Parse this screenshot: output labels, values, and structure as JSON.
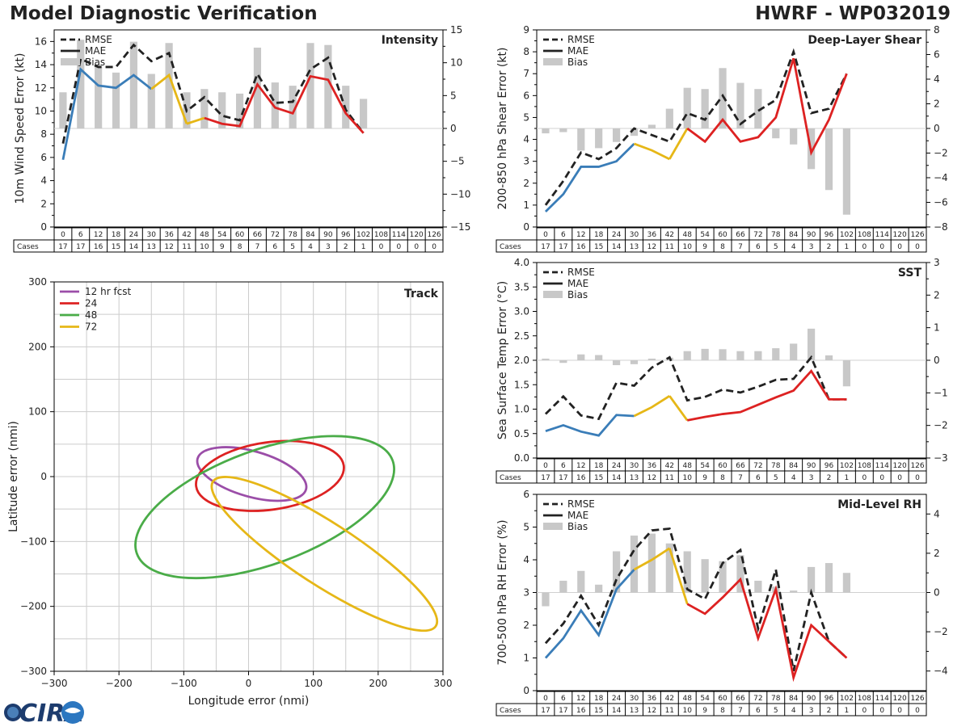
{
  "page": {
    "title_left": "Model Diagnostic Verification",
    "title_right": "HWRF - WP032019",
    "logo_text": "CIRA"
  },
  "legend_labels": {
    "rmse": "RMSE",
    "mae": "MAE",
    "bias": "Bias"
  },
  "cases_label": "Cases",
  "colors": {
    "rmse": "#222222",
    "blue": "#3a7db8",
    "yellow": "#e6b717",
    "red": "#dd2222",
    "bias": "#c8c8c8",
    "purple": "#9b4ea8",
    "green": "#4aac48"
  },
  "chart_data": [
    {
      "id": "intensity",
      "type": "line+bar",
      "title": "Intensity",
      "ylabel": "10m Wind Speed Error (kt)",
      "ylim": [
        0,
        17
      ],
      "yticks": [
        0,
        2,
        4,
        6,
        8,
        10,
        12,
        14,
        16
      ],
      "y2lim": [
        -15,
        15
      ],
      "y2ticks": [
        -15,
        -10,
        -5,
        0,
        5,
        10,
        15
      ],
      "tau": [
        0,
        6,
        12,
        18,
        24,
        30,
        36,
        42,
        48,
        54,
        60,
        66,
        72,
        78,
        84,
        90,
        96,
        102,
        108,
        114,
        120,
        126
      ],
      "cases": [
        17,
        17,
        16,
        15,
        14,
        13,
        12,
        11,
        10,
        9,
        8,
        7,
        6,
        5,
        4,
        3,
        2,
        1,
        0,
        0,
        0,
        0
      ],
      "rmse": [
        7.2,
        14.5,
        13.8,
        13.8,
        15.7,
        14.3,
        15.0,
        10.0,
        11.2,
        9.6,
        9.2,
        13.2,
        10.7,
        10.8,
        13.6,
        14.6,
        10.1,
        8.1
      ],
      "mae": [
        5.8,
        13.6,
        12.2,
        12.0,
        13.1,
        11.9,
        13.1,
        8.9,
        9.4,
        8.9,
        8.7,
        12.3,
        10.3,
        9.8,
        13.0,
        12.7,
        9.8,
        8.1
      ],
      "mae_segments": [
        {
          "from": 0,
          "to": 5,
          "color": "blue"
        },
        {
          "from": 5,
          "to": 7,
          "color": "yellow"
        },
        {
          "from": 7,
          "to": 8,
          "color": "yellow"
        },
        {
          "from": 8,
          "to": 17,
          "color": "red"
        }
      ],
      "bias": [
        5.5,
        13.5,
        9.5,
        8.5,
        13.2,
        8.3,
        13.0,
        5.5,
        6.0,
        5.5,
        5.3,
        12.3,
        7.0,
        6.5,
        13.0,
        12.7,
        6.5,
        4.5
      ]
    },
    {
      "id": "shear",
      "type": "line+bar",
      "title": "Deep-Layer Shear",
      "ylabel": "200-850 hPa Shear Error (kt)",
      "ylim": [
        0,
        9
      ],
      "yticks": [
        0,
        1,
        2,
        3,
        4,
        5,
        6,
        7,
        8,
        9
      ],
      "y2lim": [
        -8,
        8
      ],
      "y2ticks": [
        -8,
        -6,
        -4,
        -2,
        0,
        2,
        4,
        6,
        8
      ],
      "tau": [
        0,
        6,
        12,
        18,
        24,
        30,
        36,
        42,
        48,
        54,
        60,
        66,
        72,
        78,
        84,
        90,
        96,
        102,
        108,
        114,
        120,
        126
      ],
      "cases": [
        17,
        17,
        16,
        15,
        14,
        13,
        12,
        11,
        10,
        9,
        8,
        7,
        6,
        5,
        4,
        3,
        2,
        1,
        0,
        0,
        0,
        0
      ],
      "rmse": [
        1.0,
        2.1,
        3.4,
        3.1,
        3.6,
        4.5,
        4.2,
        3.9,
        5.2,
        4.9,
        6.0,
        4.7,
        5.3,
        5.8,
        8.0,
        5.2,
        5.4,
        7.0
      ],
      "mae": [
        0.7,
        1.5,
        2.75,
        2.75,
        3.0,
        3.8,
        3.5,
        3.1,
        4.5,
        3.9,
        4.9,
        3.9,
        4.1,
        5.0,
        7.7,
        3.4,
        4.9,
        7.0
      ],
      "mae_segments": [
        {
          "from": 0,
          "to": 5,
          "color": "blue"
        },
        {
          "from": 5,
          "to": 7,
          "color": "yellow"
        },
        {
          "from": 7,
          "to": 8,
          "color": "yellow"
        },
        {
          "from": 8,
          "to": 17,
          "color": "red"
        }
      ],
      "bias": [
        -0.4,
        -0.3,
        -1.8,
        -1.6,
        -1.1,
        -0.6,
        0.3,
        1.6,
        3.3,
        3.2,
        4.9,
        3.7,
        3.2,
        -0.8,
        -1.3,
        -3.3,
        -5.0,
        -7.0
      ]
    },
    {
      "id": "sst",
      "type": "line+bar",
      "title": "SST",
      "ylabel": "Sea Surface Temp Error (°C)",
      "ylim": [
        0,
        4
      ],
      "yticks": [
        0.0,
        0.5,
        1.0,
        1.5,
        2.0,
        2.5,
        3.0,
        3.5,
        4.0
      ],
      "y2lim": [
        -3,
        3
      ],
      "y2ticks": [
        -3,
        -2,
        -1,
        0,
        1,
        2,
        3
      ],
      "tau": [
        0,
        6,
        12,
        18,
        24,
        30,
        36,
        42,
        48,
        54,
        60,
        66,
        72,
        78,
        84,
        90,
        96,
        102,
        108,
        114,
        120,
        126
      ],
      "cases": [
        17,
        17,
        16,
        15,
        14,
        13,
        12,
        11,
        10,
        9,
        8,
        7,
        6,
        5,
        4,
        3,
        2,
        1,
        0,
        0,
        0,
        0
      ],
      "rmse": [
        0.9,
        1.26,
        0.87,
        0.8,
        1.54,
        1.48,
        1.85,
        2.06,
        1.18,
        1.25,
        1.4,
        1.34,
        1.46,
        1.6,
        1.62,
        2.06,
        1.2,
        1.2
      ],
      "mae": [
        0.55,
        0.67,
        0.54,
        0.46,
        0.88,
        0.86,
        1.04,
        1.27,
        0.77,
        0.84,
        0.9,
        0.94,
        1.09,
        1.24,
        1.38,
        1.78,
        1.2,
        1.2
      ],
      "mae_segments": [
        {
          "from": 0,
          "to": 5,
          "color": "blue"
        },
        {
          "from": 5,
          "to": 7,
          "color": "yellow"
        },
        {
          "from": 7,
          "to": 8,
          "color": "yellow"
        },
        {
          "from": 8,
          "to": 17,
          "color": "red"
        }
      ],
      "bias": [
        0.05,
        -0.08,
        0.18,
        0.16,
        -0.15,
        -0.12,
        0.05,
        0.08,
        0.28,
        0.35,
        0.34,
        0.28,
        0.28,
        0.37,
        0.51,
        0.97,
        0.15,
        -0.8
      ]
    },
    {
      "id": "rh",
      "type": "line+bar",
      "title": "Mid-Level RH",
      "ylabel": "700-500 hPa RH Error (%)",
      "ylim": [
        0,
        6
      ],
      "yticks": [
        0,
        1,
        2,
        3,
        4,
        5,
        6
      ],
      "y2lim": [
        -5,
        5
      ],
      "y2ticks": [
        -4,
        -2,
        0,
        2,
        4
      ],
      "tau": [
        0,
        6,
        12,
        18,
        24,
        30,
        36,
        42,
        48,
        54,
        60,
        66,
        72,
        78,
        84,
        90,
        96,
        102,
        108,
        114,
        120,
        126
      ],
      "cases": [
        17,
        17,
        16,
        15,
        14,
        13,
        12,
        11,
        10,
        9,
        8,
        7,
        6,
        5,
        4,
        3,
        2,
        1,
        0,
        0,
        0,
        0
      ],
      "rmse": [
        1.45,
        2.05,
        2.9,
        2.0,
        3.4,
        4.3,
        4.9,
        4.95,
        3.1,
        2.8,
        3.9,
        4.3,
        1.9,
        3.7,
        0.6,
        3.0,
        1.5,
        1.0
      ],
      "mae": [
        1.0,
        1.6,
        2.45,
        1.7,
        3.1,
        3.7,
        4.0,
        4.35,
        2.65,
        2.35,
        2.85,
        3.4,
        1.6,
        3.1,
        0.4,
        2.0,
        1.5,
        1.0
      ],
      "mae_segments": [
        {
          "from": 0,
          "to": 5,
          "color": "blue"
        },
        {
          "from": 5,
          "to": 7,
          "color": "yellow"
        },
        {
          "from": 7,
          "to": 8,
          "color": "yellow"
        },
        {
          "from": 8,
          "to": 17,
          "color": "red"
        }
      ],
      "bias": [
        -0.7,
        0.6,
        1.1,
        0.4,
        2.1,
        2.9,
        3.0,
        2.5,
        2.1,
        1.7,
        1.6,
        1.9,
        0.6,
        0.3,
        0.1,
        1.3,
        1.5,
        1.0
      ]
    },
    {
      "id": "track",
      "type": "ellipse",
      "title": "Track",
      "xlabel": "Longitude error (nmi)",
      "ylabel": "Latitude error (nmi)",
      "xlim": [
        -300,
        300
      ],
      "ylim": [
        -300,
        300
      ],
      "xticks": [
        -300,
        -200,
        -100,
        0,
        100,
        200,
        300
      ],
      "yticks": [
        -300,
        -200,
        -100,
        0,
        100,
        200,
        300
      ],
      "grid": true,
      "legend_position": "top-left",
      "ellipses": [
        {
          "label": "12 hr fcst",
          "color": "purple",
          "cx": 5,
          "cy": 4,
          "rx": 87,
          "ry": 35,
          "angle": -16
        },
        {
          "label": "24",
          "color": "red",
          "cx": 33,
          "cy": 1,
          "rx": 115,
          "ry": 52,
          "angle": 8
        },
        {
          "label": "48",
          "color": "green",
          "cx": 25,
          "cy": -47,
          "rx": 210,
          "ry": 88,
          "angle": 20
        },
        {
          "label": "72",
          "color": "yellow",
          "cx": 117,
          "cy": -119,
          "rx": 205,
          "ry": 48,
          "angle": -33
        }
      ]
    }
  ]
}
